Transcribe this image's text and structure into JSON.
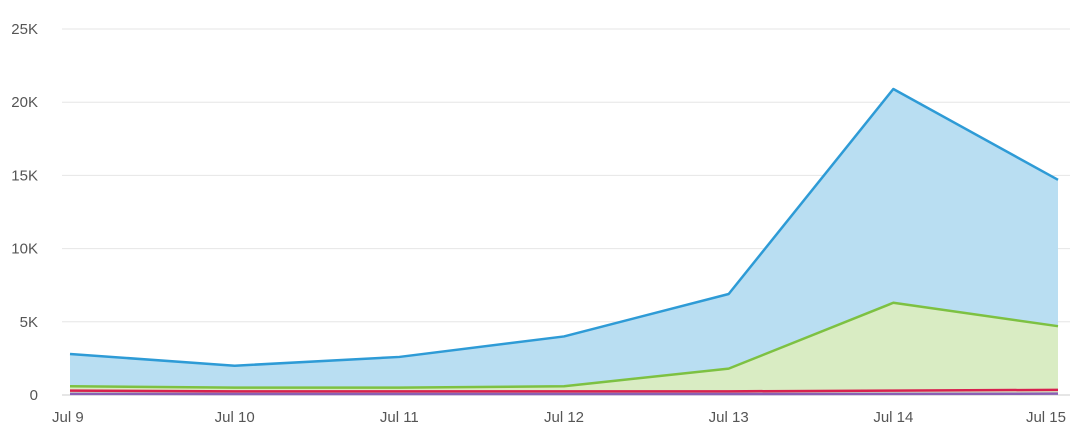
{
  "chart_data": {
    "type": "area",
    "title": "",
    "xlabel": "",
    "ylabel": "",
    "categories": [
      "Jul 9",
      "Jul 10",
      "Jul 11",
      "Jul 12",
      "Jul 13",
      "Jul 14",
      "Jul 15"
    ],
    "ylim": [
      0,
      25000
    ],
    "yticks": [
      0,
      5000,
      10000,
      15000,
      20000,
      25000
    ],
    "ytick_labels": [
      "0",
      "5K",
      "10K",
      "15K",
      "20K",
      "25K"
    ],
    "grid": true,
    "legend": "none",
    "series": [
      {
        "color": "#2e9bd6",
        "fill": "#b9def2",
        "filled": true,
        "values": [
          2800,
          2000,
          2600,
          4000,
          6900,
          20900,
          14700
        ]
      },
      {
        "color": "#7dc142",
        "fill": "#d9ecc3",
        "filled": true,
        "values": [
          600,
          500,
          500,
          600,
          1800,
          6300,
          4700
        ]
      },
      {
        "color": "#d8214f",
        "fill": "#f5c6d2",
        "filled": false,
        "values": [
          300,
          250,
          250,
          250,
          250,
          300,
          350
        ]
      },
      {
        "color": "#8a5fb5",
        "fill": "#e0d4ee",
        "filled": false,
        "values": [
          80,
          70,
          70,
          70,
          70,
          80,
          90
        ]
      }
    ]
  }
}
